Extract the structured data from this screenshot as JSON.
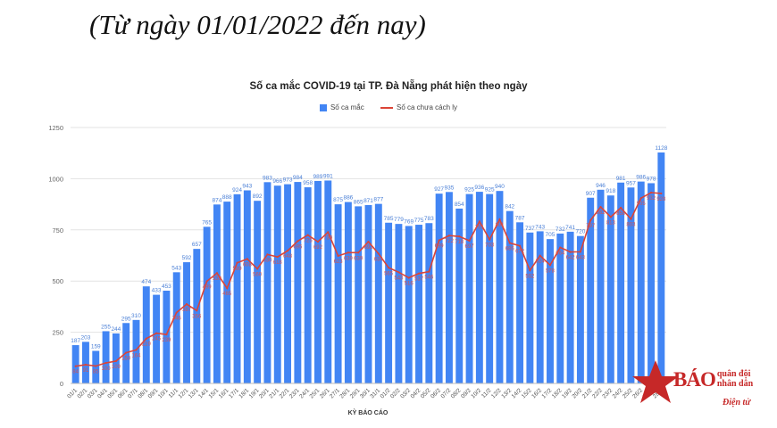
{
  "heading": "(Từ ngày 01/01/2022 đến nay)",
  "logo": {
    "main": "BÁO",
    "line1": "quân đội",
    "line2": "nhân dân",
    "sub": "Điện tử"
  },
  "colors": {
    "bar": "#4285f4",
    "line": "#db4437",
    "bar_label": "#4a7fd6",
    "line_label": "#d9534f"
  },
  "chart_data": {
    "type": "bar",
    "title": "Số ca mắc COVID-19 tại TP. Đà Nẵng phát hiện theo ngày",
    "xlabel": "KỲ BÁO CÁO",
    "ylabel": "",
    "ylim": [
      0,
      1250
    ],
    "yticks": [
      0,
      250,
      500,
      750,
      1000,
      1250
    ],
    "grid": true,
    "legend_position": "top",
    "categories": [
      "01/1",
      "02/1",
      "03/1",
      "04/1",
      "05/1",
      "06/1",
      "07/1",
      "08/1",
      "09/1",
      "10/1",
      "11/1",
      "12/1",
      "13/1",
      "14/1",
      "15/1",
      "16/1",
      "17/1",
      "18/1",
      "19/1",
      "20/1",
      "21/1",
      "22/1",
      "23/1",
      "24/1",
      "25/1",
      "26/1",
      "27/1",
      "28/1",
      "29/1",
      "30/1",
      "31/1",
      "01/2",
      "02/2",
      "03/2",
      "04/2",
      "05/2",
      "06/2",
      "07/2",
      "08/2",
      "09/2",
      "10/2",
      "11/2",
      "12/2",
      "13/2",
      "14/2",
      "15/2",
      "16/2",
      "17/2",
      "18/2",
      "19/2",
      "20/2",
      "21/2",
      "22/2",
      "23/2",
      "24/2",
      "25/2",
      "26/2",
      "27/2",
      "28/2"
    ],
    "series": [
      {
        "name": "Số ca mắc",
        "type": "bar",
        "values": [
          187,
          203,
          159,
          255,
          244,
          295,
          310,
          474,
          433,
          453,
          543,
          592,
          657,
          765,
          874,
          888,
          924,
          943,
          892,
          983,
          966,
          973,
          984,
          958,
          989,
          991,
          875,
          886,
          865,
          871,
          877,
          785,
          779,
          769,
          775,
          783,
          927,
          935,
          854,
          925,
          936,
          925,
          940,
          842,
          787,
          737,
          743,
          705,
          732,
          741,
          720,
          907,
          946,
          918,
          981,
          957,
          986,
          978,
          1128
        ]
      },
      {
        "name": "Số ca chưa cách ly",
        "type": "line",
        "values": [
          84,
          91,
          85,
          100,
          109,
          150,
          164,
          219,
          245,
          239,
          346,
          387,
          356,
          499,
          539,
          465,
          589,
          608,
          560,
          630,
          618,
          648,
          695,
          725,
          692,
          739,
          623,
          639,
          639,
          692,
          634,
          565,
          543,
          516,
          537,
          546,
          699,
          722,
          718,
          697,
          791,
          703,
          801,
          686,
          672,
          552,
          624,
          578,
          664,
          642,
          643,
          797,
          862,
          813,
          858,
          803,
          905,
          932,
          928
        ]
      }
    ]
  }
}
